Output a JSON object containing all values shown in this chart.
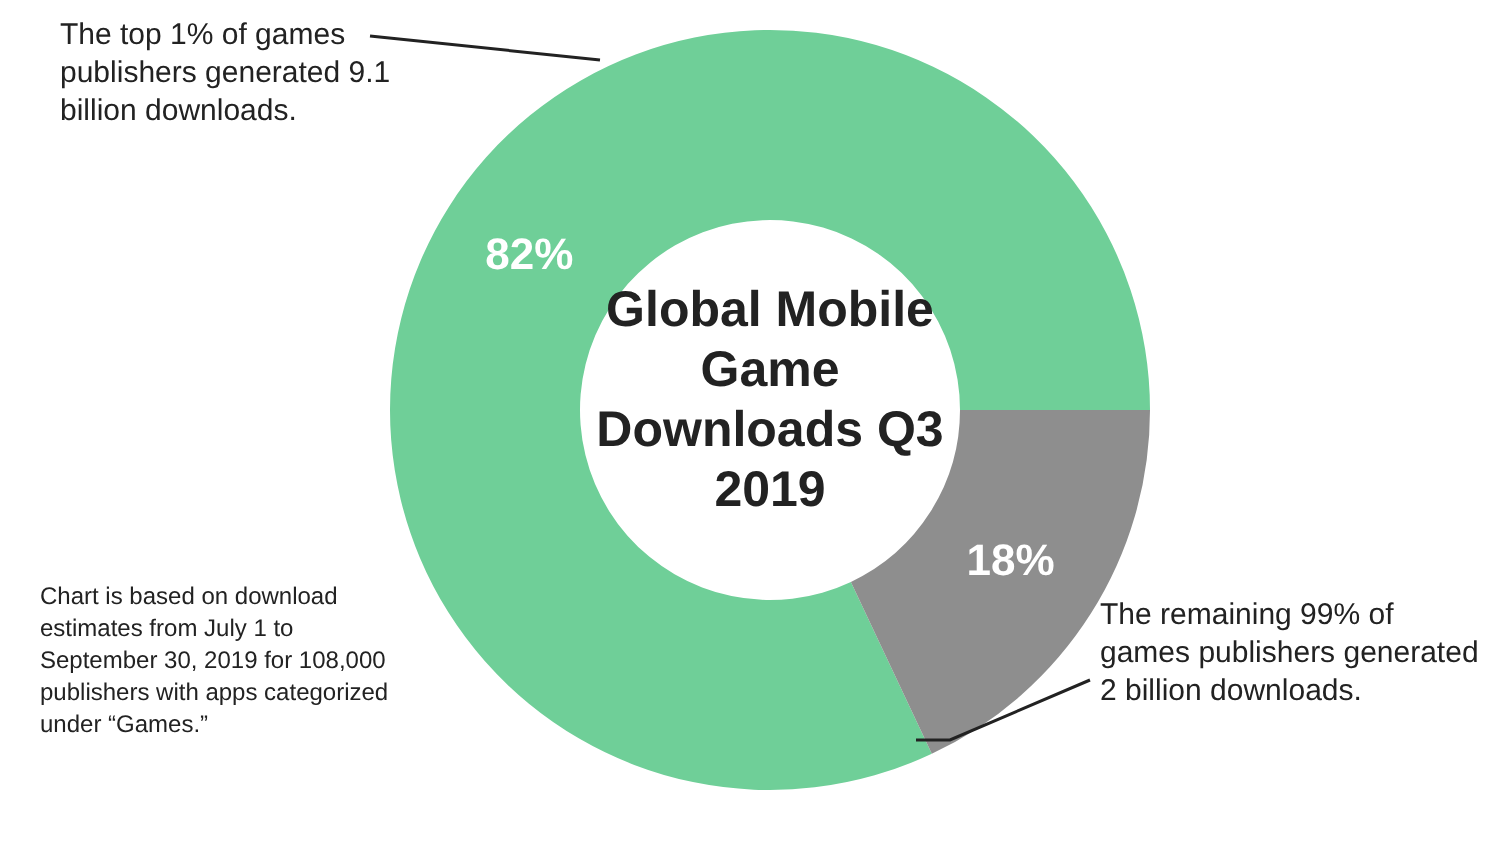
{
  "chart_data": {
    "type": "donut",
    "title": "Global Mobile Game Downloads Q3 2019",
    "categories": [
      "The top 1% of games publishers generated 9.1 billion downloads.",
      "The remaining 99% of games publishers generated 2 billion downloads."
    ],
    "values": [
      82,
      18
    ],
    "colors": [
      "#6fcf98",
      "#8e8e8e"
    ],
    "value_labels": [
      "82%",
      "18%"
    ],
    "legend": false,
    "annotations": [
      "Chart is based on download estimates from July 1 to September 30, 2019 for 108,000 publishers with apps categorized under “Games.”"
    ]
  }
}
